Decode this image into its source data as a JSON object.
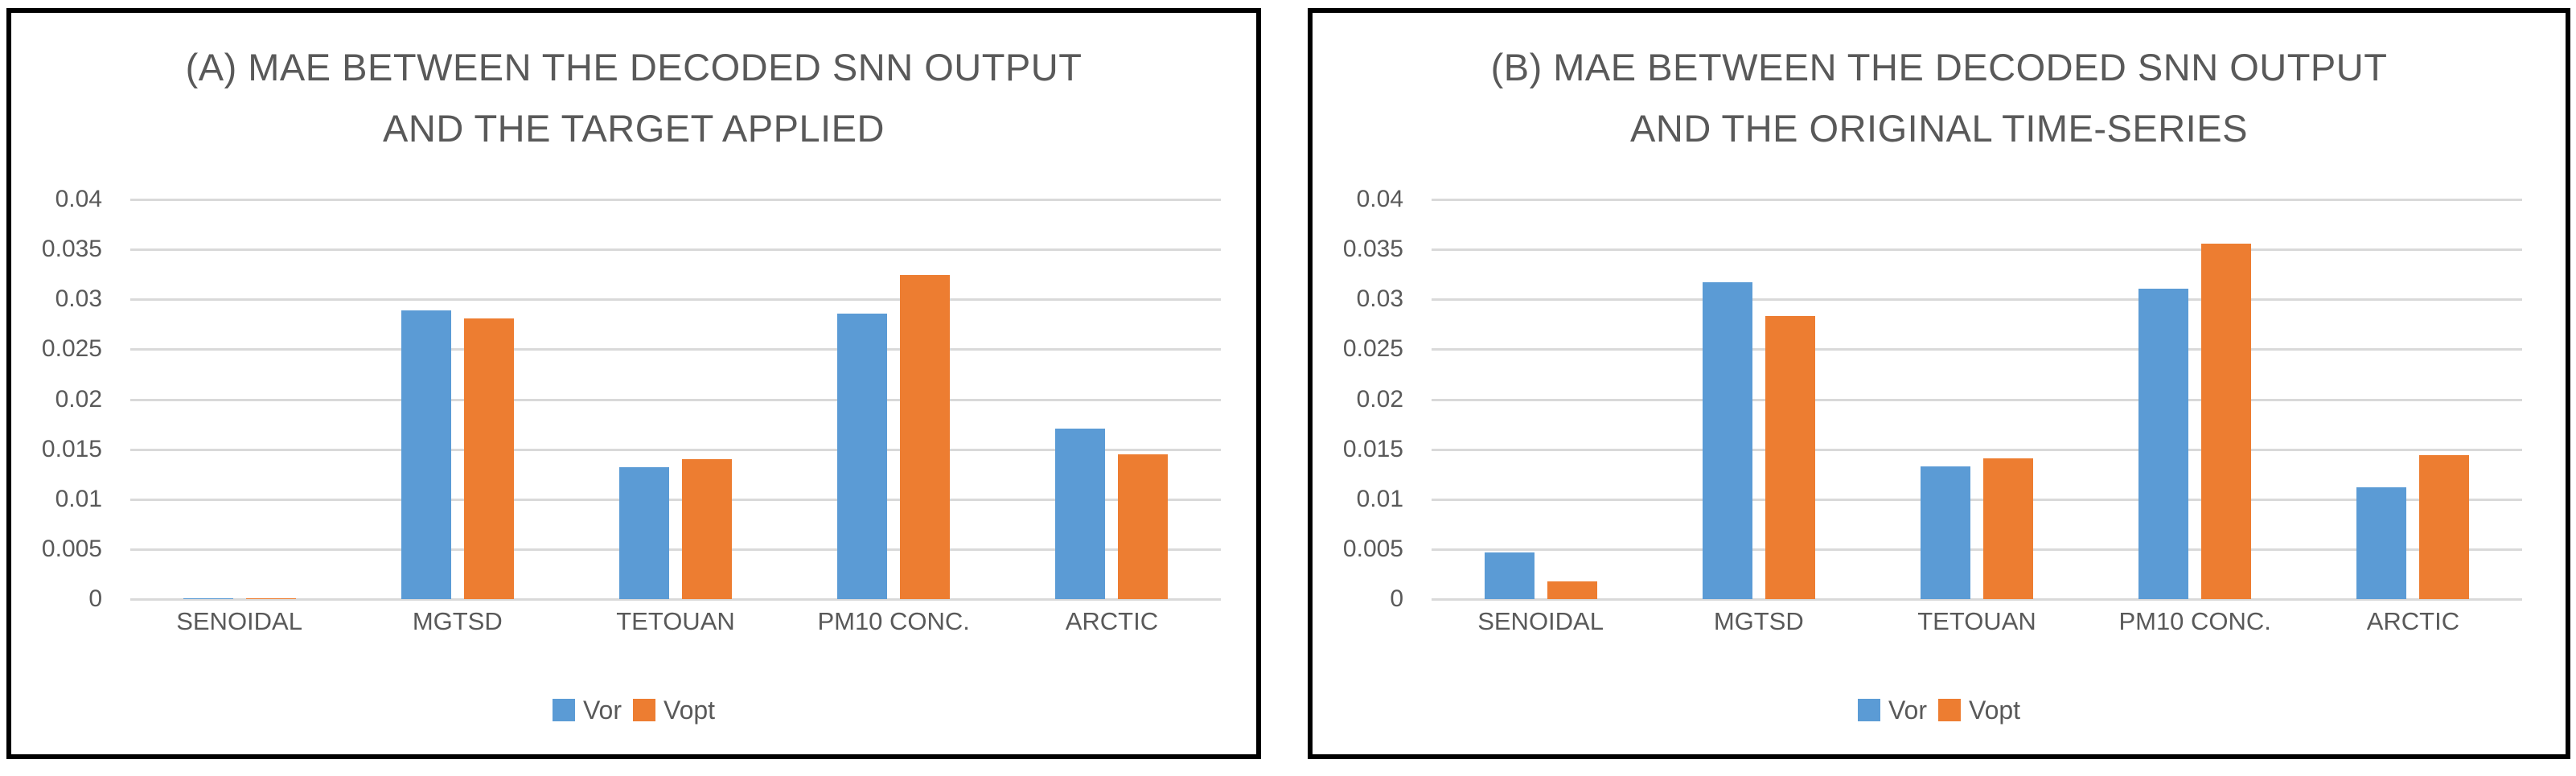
{
  "window": {
    "background": "#FFFFFF"
  },
  "colors": {
    "vor": "#5B9BD5",
    "vopt": "#ED7D31",
    "gridline": "#D9D9D9",
    "text": "#595959",
    "panel_border": "#000000"
  },
  "chart_data": [
    {
      "type": "bar",
      "title": "(A) MAE BETWEEN THE DECODED SNN OUTPUT AND THE TARGET APPLIED",
      "title_lines": [
        "(A) MAE BETWEEN THE DECODED SNN OUTPUT",
        "AND THE TARGET APPLIED"
      ],
      "categories": [
        "SENOIDAL",
        "MGTSD",
        "TETOUAN",
        "PM10 CONC.",
        "ARCTIC"
      ],
      "series": [
        {
          "name": "Vor",
          "color": "#5B9BD5",
          "values": [
            0.0001,
            0.0289,
            0.0132,
            0.0286,
            0.0171
          ]
        },
        {
          "name": "Vopt",
          "color": "#ED7D31",
          "values": [
            0.0001,
            0.0281,
            0.014,
            0.0324,
            0.0145
          ]
        }
      ],
      "xlabel": "",
      "ylabel": "",
      "ylim": [
        0,
        0.04
      ],
      "ytick_step": 0.005,
      "ytick_labels": [
        "0",
        "0.005",
        "0.01",
        "0.015",
        "0.02",
        "0.025",
        "0.03",
        "0.035",
        "0.04"
      ],
      "grid": true,
      "legend_position": "bottom"
    },
    {
      "type": "bar",
      "title": "(B) MAE BETWEEN THE DECODED SNN OUTPUT AND THE ORIGINAL TIME-SERIES",
      "title_lines": [
        "(B) MAE BETWEEN THE DECODED SNN OUTPUT",
        "AND THE ORIGINAL TIME-SERIES"
      ],
      "categories": [
        "SENOIDAL",
        "MGTSD",
        "TETOUAN",
        "PM10 CONC.",
        "ARCTIC"
      ],
      "series": [
        {
          "name": "Vor",
          "color": "#5B9BD5",
          "values": [
            0.0047,
            0.0317,
            0.0133,
            0.0311,
            0.0112
          ]
        },
        {
          "name": "Vopt",
          "color": "#ED7D31",
          "values": [
            0.0018,
            0.0283,
            0.0141,
            0.0356,
            0.0144
          ]
        }
      ],
      "xlabel": "",
      "ylabel": "",
      "ylim": [
        0,
        0.04
      ],
      "ytick_step": 0.005,
      "ytick_labels": [
        "0",
        "0.005",
        "0.01",
        "0.015",
        "0.02",
        "0.025",
        "0.03",
        "0.035",
        "0.04"
      ],
      "grid": true,
      "legend_position": "bottom"
    }
  ]
}
